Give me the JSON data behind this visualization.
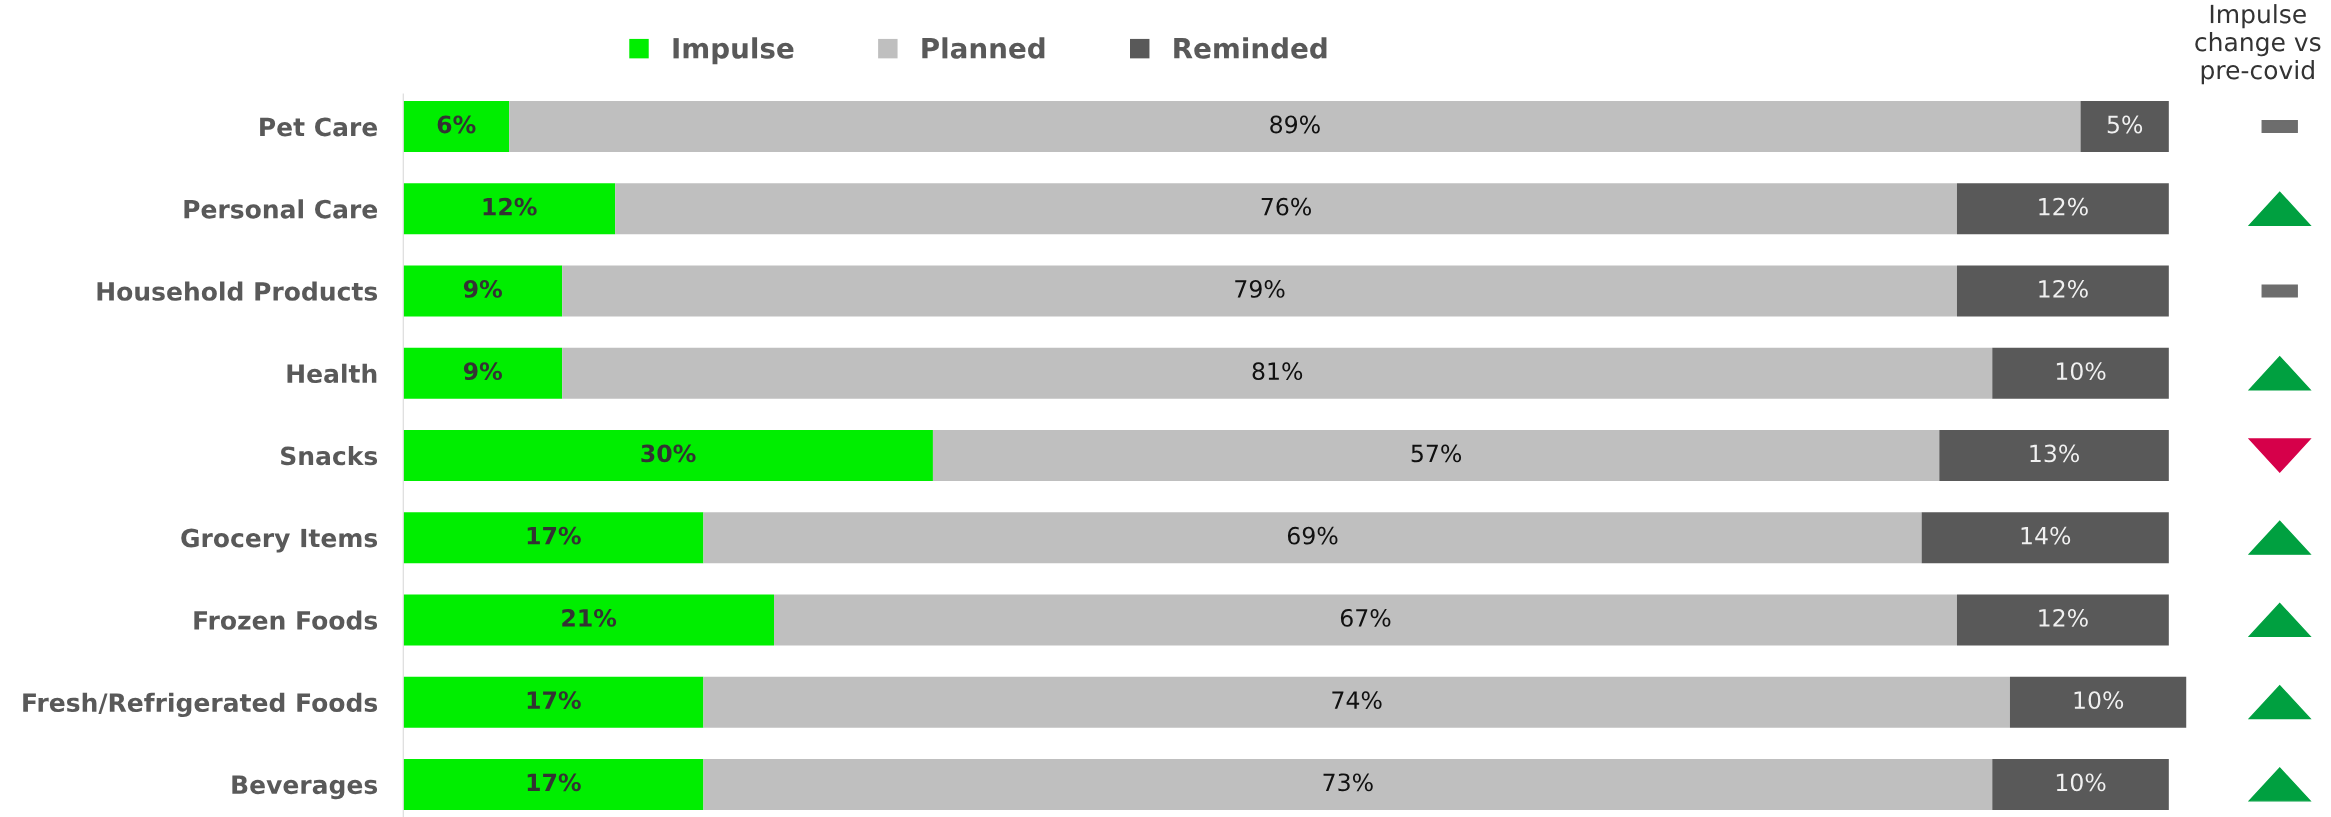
{
  "chart_data": {
    "type": "bar",
    "orientation": "horizontal",
    "stacked": true,
    "legend": "top",
    "tick_labels": "y",
    "grid": false,
    "categories": [
      "Pet Care",
      "Personal Care",
      "Household Products",
      "Health",
      "Snacks",
      "Grocery Items",
      "Frozen Foods",
      "Fresh/Refrigerated Foods",
      "Beverages"
    ],
    "series": [
      {
        "name": "Impulse",
        "color": "#00ee00",
        "values": [
          6,
          12,
          9,
          9,
          30,
          17,
          21,
          17,
          17
        ],
        "value_labels": [
          "6%",
          "12%",
          "9%",
          "9%",
          "30%",
          "17%",
          "21%",
          "17%",
          "17%"
        ]
      },
      {
        "name": "Planned",
        "color": "#bfbfbf",
        "values": [
          89,
          76,
          79,
          81,
          57,
          69,
          67,
          74,
          73
        ],
        "value_labels": [
          "89%",
          "76%",
          "79%",
          "81%",
          "57%",
          "69%",
          "67%",
          "74%",
          "73%"
        ]
      },
      {
        "name": "Reminded",
        "color": "#595959",
        "values": [
          5,
          12,
          12,
          10,
          13,
          14,
          12,
          10,
          10
        ],
        "value_labels": [
          "5%",
          "12%",
          "12%",
          "10%",
          "13%",
          "14%",
          "12%",
          "10%",
          "10%"
        ]
      }
    ],
    "annotations": [
      "Impulse\nchange vs\npre-covid"
    ]
  }
}
